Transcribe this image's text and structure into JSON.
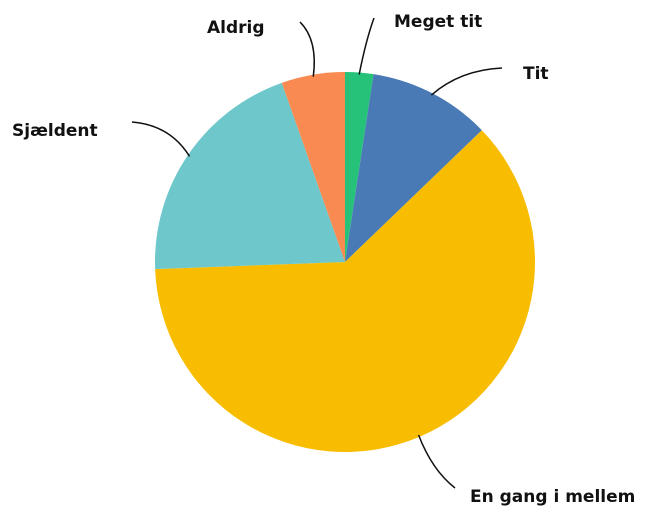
{
  "chart_data": {
    "type": "pie",
    "categories": [
      "Meget tit",
      "Tit",
      "En gang i mellem",
      "Sjældent",
      "Aldrig"
    ],
    "values": [
      2.4,
      10.4,
      61.6,
      20.2,
      5.4
    ],
    "colors": [
      "#27c27a",
      "#4a7ab5",
      "#f8bd00",
      "#6dc7cb",
      "#f98b52"
    ]
  }
}
